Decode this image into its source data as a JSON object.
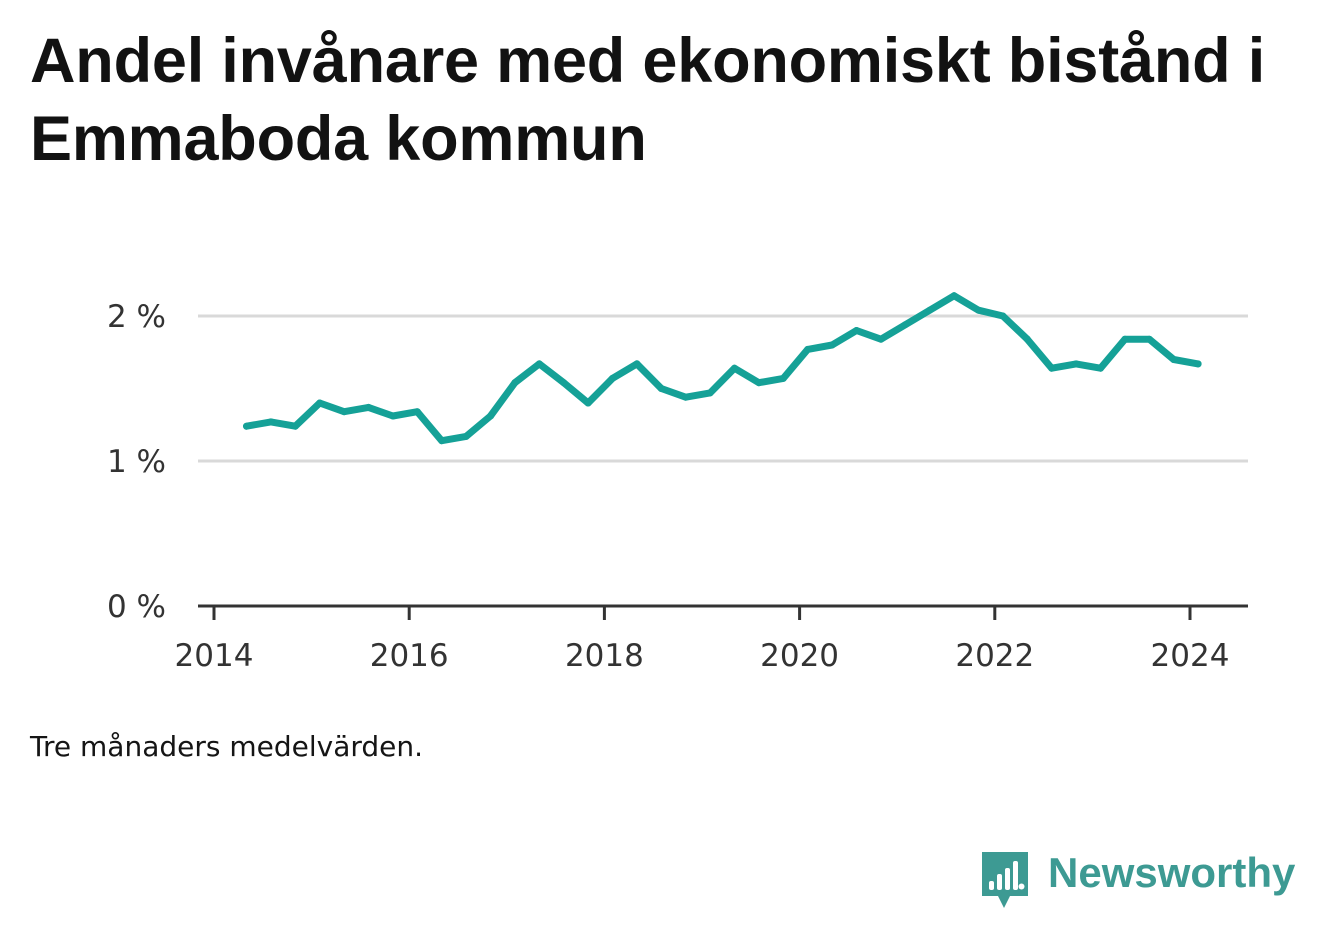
{
  "title": "Andel invånare med ekonomiskt bistånd i Emmaboda kommun",
  "note": "Tre månaders medelvärden.",
  "brand": {
    "name": "Newsworthy",
    "icon": "newsworthy-logo-icon",
    "color": "#3d9a93"
  },
  "colors": {
    "line": "#15a197",
    "grid": "#d9d9d9",
    "axis": "#333333"
  },
  "chart_data": {
    "type": "line",
    "title": "Andel invånare med ekonomiskt bistånd i Emmaboda kommun",
    "xlabel": "",
    "ylabel": "",
    "x_ticks": [
      "2014",
      "2016",
      "2018",
      "2020",
      "2022",
      "2024"
    ],
    "y_ticks": [
      "0 %",
      "1 %",
      "2 %"
    ],
    "ylim": [
      0,
      2.2
    ],
    "grid": true,
    "series": [
      {
        "x": [
          "2014-05",
          "2014-08",
          "2014-11",
          "2015-02",
          "2015-05",
          "2015-08",
          "2015-11",
          "2016-02",
          "2016-05",
          "2016-08",
          "2016-11",
          "2017-02",
          "2017-05",
          "2017-08",
          "2017-11",
          "2018-02",
          "2018-05",
          "2018-08",
          "2018-11",
          "2019-02",
          "2019-05",
          "2019-08",
          "2019-11",
          "2020-02",
          "2020-05",
          "2020-08",
          "2020-11",
          "2021-02",
          "2021-05",
          "2021-08",
          "2021-11",
          "2022-02",
          "2022-05",
          "2022-08",
          "2022-11",
          "2023-02",
          "2023-05",
          "2023-08",
          "2023-11",
          "2024-02"
        ],
        "y": [
          1.24,
          1.27,
          1.24,
          1.4,
          1.34,
          1.37,
          1.31,
          1.34,
          1.14,
          1.17,
          1.31,
          1.54,
          1.67,
          1.54,
          1.4,
          1.57,
          1.67,
          1.5,
          1.44,
          1.47,
          1.64,
          1.54,
          1.57,
          1.77,
          1.8,
          1.9,
          1.84,
          1.94,
          2.04,
          2.14,
          2.04,
          2.0,
          1.84,
          1.64,
          1.67,
          1.64,
          1.84,
          1.84,
          1.7,
          1.67
        ]
      }
    ]
  }
}
